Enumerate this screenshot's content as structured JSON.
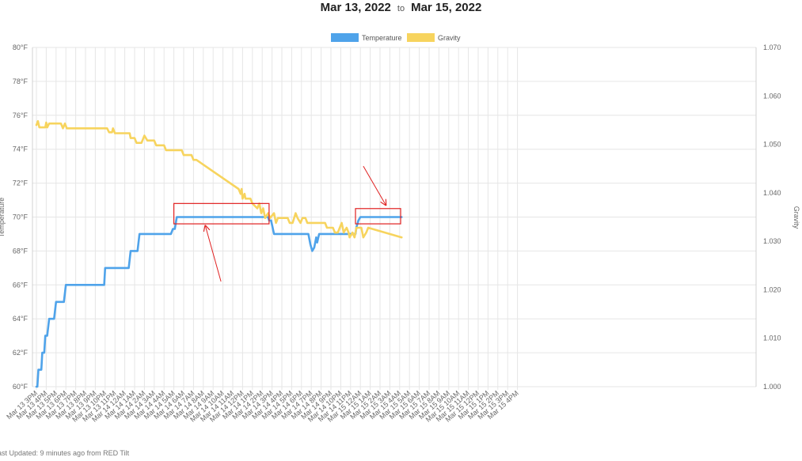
{
  "header": {
    "date_from": "Mar 13, 2022",
    "to_label": "to",
    "date_to": "Mar 15, 2022"
  },
  "footer": {
    "last_updated": "ast Updated: 9 minutes ago from RED Tilt"
  },
  "colors": {
    "temperature": "#4fa3ea",
    "gravity": "#f7d45e",
    "annotation": "#e02020",
    "grid": "#e6e6e6"
  },
  "chart_data": {
    "type": "line",
    "legend_position": "top-center",
    "grid": true,
    "y_left": {
      "label": "Temperature",
      "range": [
        60,
        80
      ],
      "ticks": [
        "80°F",
        "78°F",
        "76°F",
        "74°F",
        "72°F",
        "70°F",
        "68°F",
        "66°F",
        "64°F",
        "62°F",
        "60°F"
      ]
    },
    "y_right": {
      "label": "Gravity",
      "range": [
        1.0,
        1.07
      ],
      "ticks": [
        "1.070",
        "1.060",
        "1.050",
        "1.040",
        "1.030",
        "1.020",
        "1.010",
        "1.000"
      ]
    },
    "categories": [
      "Mar 13 3PM",
      "Mar 13 4PM",
      "Mar 13 5PM",
      "Mar 13 6PM",
      "Mar 13 7PM",
      "Mar 13 8PM",
      "Mar 13 9PM",
      "Mar 13 10PM",
      "Mar 13 11PM",
      "Mar 14 12AM",
      "Mar 14 1AM",
      "Mar 14 2AM",
      "Mar 14 3AM",
      "Mar 14 4AM",
      "Mar 14 5AM",
      "Mar 14 6AM",
      "Mar 14 7AM",
      "Mar 14 8AM",
      "Mar 14 9AM",
      "Mar 14 10AM",
      "Mar 14 11AM",
      "Mar 14 12PM",
      "Mar 14 1PM",
      "Mar 14 2PM",
      "Mar 14 3PM",
      "Mar 14 4PM",
      "Mar 14 5PM",
      "Mar 14 6PM",
      "Mar 14 7PM",
      "Mar 14 8PM",
      "Mar 14 9PM",
      "Mar 14 10PM",
      "Mar 14 11PM",
      "Mar 15 12AM",
      "Mar 15 1AM",
      "Mar 15 2AM",
      "Mar 15 3AM",
      "Mar 15 4AM",
      "Mar 15 5AM",
      "Mar 15 6AM",
      "Mar 15 7AM",
      "Mar 15 8AM",
      "Mar 15 9AM",
      "Mar 15 10AM",
      "Mar 15 11AM",
      "Mar 15 12PM",
      "Mar 15 1PM",
      "Mar 15 2PM",
      "Mar 15 3PM",
      "Mar 15 4PM"
    ],
    "series": [
      {
        "name": "Temperature",
        "axis": "left",
        "points": [
          [
            0,
            60
          ],
          [
            0.1,
            60
          ],
          [
            0.2,
            61
          ],
          [
            0.5,
            61
          ],
          [
            0.6,
            62
          ],
          [
            0.8,
            62
          ],
          [
            0.9,
            63
          ],
          [
            1.1,
            63
          ],
          [
            1.3,
            64
          ],
          [
            1.8,
            64
          ],
          [
            2.0,
            65
          ],
          [
            2.8,
            65
          ],
          [
            3.0,
            66
          ],
          [
            6.9,
            66
          ],
          [
            7.0,
            67
          ],
          [
            9.4,
            67
          ],
          [
            9.6,
            68
          ],
          [
            10.3,
            68
          ],
          [
            10.5,
            69
          ],
          [
            13.7,
            69
          ],
          [
            13.9,
            69.3
          ],
          [
            14.1,
            69.3
          ],
          [
            14.3,
            70
          ],
          [
            23.6,
            70
          ],
          [
            23.7,
            69.8
          ],
          [
            23.9,
            69.8
          ],
          [
            24.2,
            69
          ],
          [
            27.7,
            69
          ],
          [
            27.9,
            68.4
          ],
          [
            28.1,
            68
          ],
          [
            28.3,
            68.2
          ],
          [
            28.5,
            68.8
          ],
          [
            28.6,
            68.5
          ],
          [
            28.8,
            69
          ],
          [
            32.5,
            69
          ],
          [
            32.6,
            69.4
          ],
          [
            32.8,
            69.8
          ],
          [
            33.0,
            70
          ],
          [
            37.2,
            70
          ]
        ]
      },
      {
        "name": "Gravity",
        "axis": "right",
        "points": [
          [
            0,
            1.054
          ],
          [
            0.15,
            1.0548
          ],
          [
            0.3,
            1.0535
          ],
          [
            0.9,
            1.0535
          ],
          [
            1.0,
            1.0545
          ],
          [
            1.1,
            1.0535
          ],
          [
            1.3,
            1.0543
          ],
          [
            2.5,
            1.0543
          ],
          [
            2.7,
            1.0533
          ],
          [
            2.9,
            1.0543
          ],
          [
            3.1,
            1.0533
          ],
          [
            7.2,
            1.0533
          ],
          [
            7.4,
            1.0525
          ],
          [
            7.7,
            1.0525
          ],
          [
            7.8,
            1.0533
          ],
          [
            8.0,
            1.0523
          ],
          [
            9.5,
            1.0523
          ],
          [
            9.6,
            1.0513
          ],
          [
            10.0,
            1.0513
          ],
          [
            10.2,
            1.0503
          ],
          [
            10.7,
            1.0503
          ],
          [
            11.0,
            1.0518
          ],
          [
            11.3,
            1.0508
          ],
          [
            12.0,
            1.0508
          ],
          [
            12.2,
            1.0498
          ],
          [
            13.0,
            1.0498
          ],
          [
            13.2,
            1.0488
          ],
          [
            14.8,
            1.0488
          ],
          [
            15.0,
            1.0478
          ],
          [
            15.8,
            1.0478
          ],
          [
            16.0,
            1.0468
          ],
          [
            16.3,
            1.0468
          ],
          [
            20.6,
            1.0408
          ],
          [
            20.8,
            1.0398
          ],
          [
            20.9,
            1.0408
          ],
          [
            21.0,
            1.0388
          ],
          [
            21.2,
            1.0398
          ],
          [
            21.3,
            1.0388
          ],
          [
            21.8,
            1.0388
          ],
          [
            22.0,
            1.0378
          ],
          [
            22.5,
            1.0368
          ],
          [
            22.7,
            1.0378
          ],
          [
            22.9,
            1.0358
          ],
          [
            23.1,
            1.0368
          ],
          [
            23.3,
            1.0348
          ],
          [
            23.6,
            1.0358
          ],
          [
            23.8,
            1.0348
          ],
          [
            24.2,
            1.0358
          ],
          [
            24.4,
            1.0338
          ],
          [
            24.6,
            1.0348
          ],
          [
            25.6,
            1.0348
          ],
          [
            25.8,
            1.0338
          ],
          [
            26.1,
            1.0338
          ],
          [
            26.4,
            1.0358
          ],
          [
            26.6,
            1.0348
          ],
          [
            26.9,
            1.0338
          ],
          [
            27.1,
            1.0348
          ],
          [
            27.4,
            1.0348
          ],
          [
            27.6,
            1.0338
          ],
          [
            29.4,
            1.0338
          ],
          [
            29.6,
            1.0328
          ],
          [
            30.2,
            1.0328
          ],
          [
            30.4,
            1.0318
          ],
          [
            30.7,
            1.0318
          ],
          [
            31.1,
            1.0338
          ],
          [
            31.3,
            1.0318
          ],
          [
            31.6,
            1.0328
          ],
          [
            31.8,
            1.0318
          ],
          [
            31.9,
            1.0308
          ],
          [
            32.2,
            1.0318
          ],
          [
            32.4,
            1.0308
          ],
          [
            32.6,
            1.0328
          ],
          [
            33.1,
            1.0328
          ],
          [
            33.3,
            1.0308
          ],
          [
            33.6,
            1.0318
          ],
          [
            33.8,
            1.0328
          ],
          [
            37.2,
            1.0308
          ]
        ]
      }
    ],
    "annotations": [
      {
        "type": "box",
        "x_range": [
          14.0,
          23.7
        ],
        "y_range": [
          69.6,
          70.8
        ],
        "axis": "left"
      },
      {
        "type": "box",
        "x_range": [
          32.5,
          37.1
        ],
        "y_range": [
          69.6,
          70.5
        ],
        "axis": "left"
      },
      {
        "type": "arrow",
        "from": [
          18.8,
          66.2
        ],
        "to": [
          17.2,
          69.5
        ],
        "axis": "left"
      },
      {
        "type": "arrow",
        "from": [
          33.3,
          73.0
        ],
        "to": [
          35.6,
          70.7
        ],
        "axis": "left"
      }
    ]
  }
}
